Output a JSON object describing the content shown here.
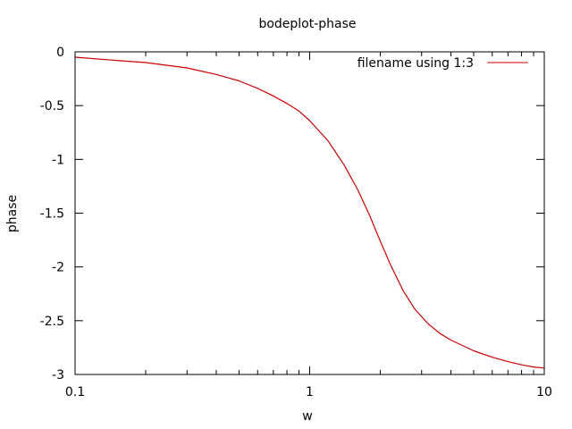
{
  "chart_data": {
    "type": "line",
    "title": "bodeplot-phase",
    "xlabel": "w",
    "ylabel": "phase",
    "xscale": "log",
    "xlim": [
      0.1,
      10
    ],
    "ylim": [
      -3,
      0
    ],
    "grid": false,
    "legend_position": "top-right",
    "x_ticks": [
      0.1,
      1,
      10
    ],
    "x_tick_labels": [
      "0.1",
      "1",
      "10"
    ],
    "y_ticks": [
      0,
      -0.5,
      -1,
      -1.5,
      -2,
      -2.5,
      -3
    ],
    "y_tick_labels": [
      "0",
      "-0.5",
      "-1",
      "-1.5",
      "-2",
      "-2.5",
      "-3"
    ],
    "series": [
      {
        "name": "filename using 1:3",
        "color": "#cc0000",
        "x": [
          0.1,
          0.15,
          0.2,
          0.3,
          0.4,
          0.5,
          0.6,
          0.7,
          0.8,
          0.9,
          1.0,
          1.2,
          1.4,
          1.6,
          1.8,
          2.0,
          2.2,
          2.5,
          2.8,
          3.2,
          3.6,
          4.0,
          5.0,
          6.0,
          7.0,
          8.0,
          9.0,
          10.0
        ],
        "y": [
          -0.05,
          -0.08,
          -0.1,
          -0.15,
          -0.21,
          -0.27,
          -0.34,
          -0.41,
          -0.48,
          -0.55,
          -0.64,
          -0.83,
          -1.05,
          -1.28,
          -1.52,
          -1.76,
          -1.97,
          -2.22,
          -2.39,
          -2.53,
          -2.62,
          -2.68,
          -2.78,
          -2.84,
          -2.88,
          -2.91,
          -2.93,
          -2.94
        ]
      }
    ]
  }
}
